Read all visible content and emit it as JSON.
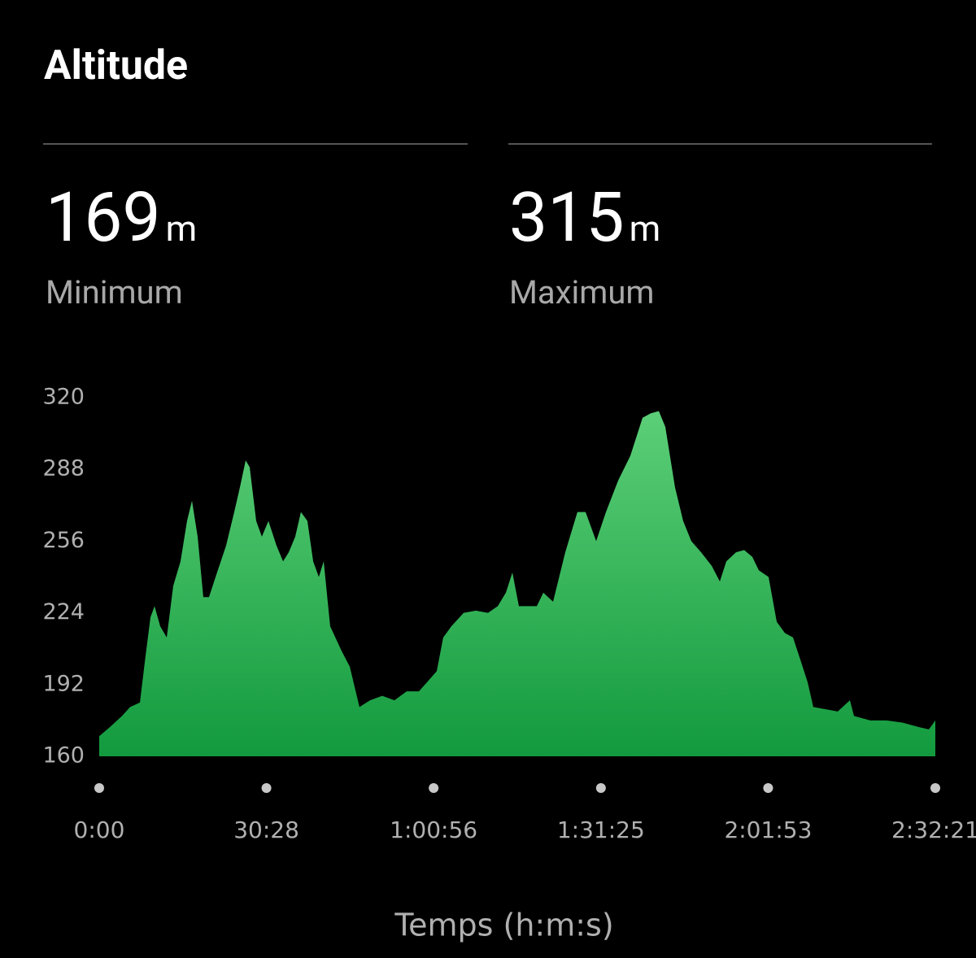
{
  "title": "Altitude",
  "stats": [
    {
      "value": 169,
      "unit": "m",
      "label": "Minimum"
    },
    {
      "value": 315,
      "unit": "m",
      "label": "Maximum"
    }
  ],
  "chart_data": {
    "type": "area",
    "x_label": "Temps (h:m:s)",
    "x": [
      0,
      116,
      249,
      338,
      445,
      498,
      560,
      605,
      667,
      738,
      809,
      889,
      960,
      1014,
      1076,
      1138,
      1200,
      1272,
      1387,
      1476,
      1538,
      1601,
      1645,
      1716,
      1778,
      1850,
      1938,
      2010,
      2072,
      2143,
      2205,
      2276,
      2339,
      2401,
      2454,
      2525,
      2650,
      2739,
      2845,
      2961,
      3094,
      3228,
      3361,
      3495,
      3583,
      3690,
      3761,
      3850,
      3984,
      4117,
      4250,
      4357,
      4446,
      4517,
      4588,
      4695,
      4784,
      4855,
      4962,
      5095,
      5228,
      5317,
      5433,
      5540,
      5673,
      5806,
      5940,
      6029,
      6118,
      6189,
      6295,
      6384,
      6473,
      6580,
      6696,
      6785,
      6856,
      6962,
      7051,
      7140,
      7211,
      7318,
      7407,
      7496,
      7585,
      7674,
      7745,
      7807,
      7941,
      8074,
      8207,
      8252,
      8430,
      8607,
      8785,
      8963,
      9070,
      9141
    ],
    "values": [
      169,
      173,
      178,
      182,
      184,
      202,
      222,
      227,
      218,
      213,
      236,
      247,
      265,
      274,
      258,
      231,
      231,
      240,
      254,
      269,
      280,
      292,
      289,
      265,
      258,
      265,
      254,
      247,
      251,
      258,
      269,
      265,
      247,
      240,
      247,
      218,
      207,
      200,
      182,
      185,
      187,
      185,
      189,
      189,
      193,
      198,
      213,
      218,
      224,
      225,
      224,
      227,
      233,
      242,
      227,
      227,
      227,
      233,
      229,
      251,
      269,
      269,
      256,
      269,
      283,
      294,
      311,
      313,
      314,
      307,
      280,
      265,
      256,
      251,
      245,
      238,
      247,
      251,
      252,
      249,
      243,
      240,
      220,
      215,
      213,
      202,
      193,
      182,
      181,
      180,
      185,
      178,
      176,
      176,
      175,
      173,
      172,
      176
    ],
    "gradient": [
      "#5ccf78",
      "#139a3e"
    ],
    "xlim": [
      0,
      9141
    ],
    "xticks": [
      {
        "value": 0,
        "label": "0:00"
      },
      {
        "value": 1828,
        "label": "30:28"
      },
      {
        "value": 3656,
        "label": "1:00:56"
      },
      {
        "value": 5485,
        "label": "1:31:25"
      },
      {
        "value": 7313,
        "label": "2:01:53"
      },
      {
        "value": 9141,
        "label": "2:32:21"
      }
    ],
    "ylim": [
      160,
      320
    ],
    "yticks": [
      160,
      192,
      224,
      256,
      288,
      320
    ]
  }
}
